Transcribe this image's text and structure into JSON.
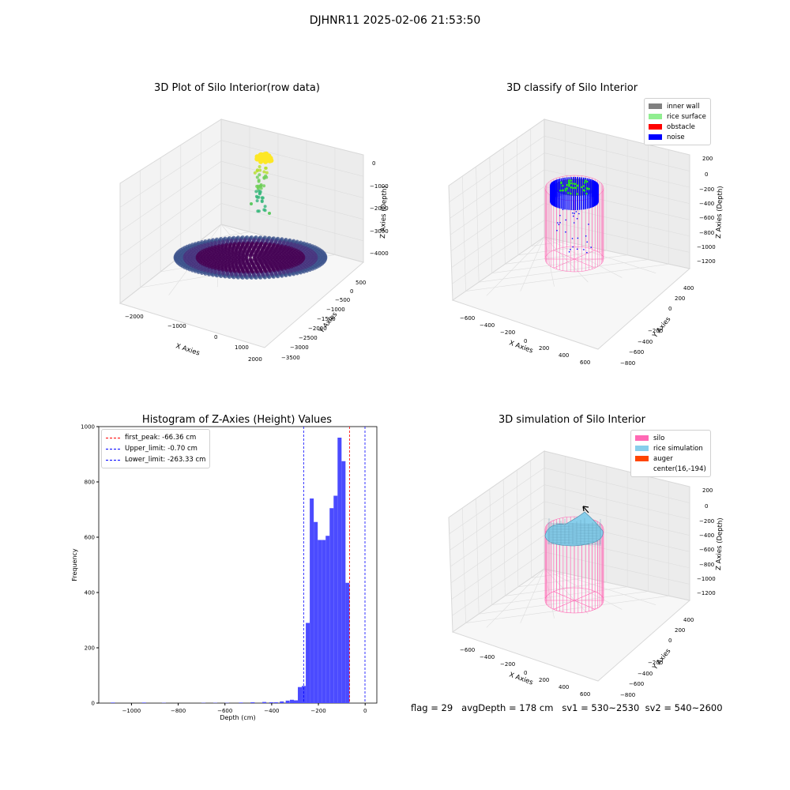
{
  "suptitle": "DJHNR11 2025-02-06 21:53:50",
  "footer": {
    "flag": "flag = 29",
    "avg": "avgDepth = 178 cm",
    "sv1": "sv1 = 530~2530",
    "sv2": "sv2 = 540~2600"
  },
  "chart_data": [
    {
      "type": "scatter",
      "title": "3D Plot of Silo Interior(row data)",
      "xlabel": "X Axies",
      "ylabel": "Y Axies",
      "zlabel": "Z Axies (Depth)",
      "x_ticks": [
        "−2000",
        "−1000",
        "0",
        "1000",
        "2000"
      ],
      "y_ticks": [
        "500",
        "0",
        "−500",
        "−1000",
        "−1500",
        "−2000",
        "−2500",
        "−3000",
        "−3500"
      ],
      "z_ticks": [
        "0",
        "−1000",
        "−2000",
        "−3000",
        "−4000"
      ],
      "colormap": "viridis"
    },
    {
      "type": "scatter",
      "title": "3D classify of Silo Interior",
      "xlabel": "X Axies",
      "ylabel": "Y Axies",
      "zlabel": "Z Axies (Depth)",
      "x_ticks": [
        "−600",
        "−400",
        "−200",
        "0",
        "200",
        "400",
        "600"
      ],
      "y_ticks": [
        "400",
        "200",
        "0",
        "−200",
        "−400",
        "−600",
        "−800"
      ],
      "z_ticks": [
        "200",
        "0",
        "−200",
        "−400",
        "−600",
        "−800",
        "−1000",
        "−1200"
      ],
      "legend": [
        {
          "label": "inner wall",
          "color": "#808080"
        },
        {
          "label": "rice surface",
          "color": "#90ee90"
        },
        {
          "label": "obstacle",
          "color": "#ff0000"
        },
        {
          "label": "noise",
          "color": "#0000ff"
        }
      ],
      "legend_position": "top-right"
    },
    {
      "type": "bar",
      "title": "Histogram of Z-Axies (Height) Values",
      "xlabel": "Depth (cm)",
      "ylabel": "Frequency",
      "xlim": [
        -1140,
        50
      ],
      "ylim": [
        0,
        1000
      ],
      "x_ticks": [
        -1000,
        -800,
        -600,
        -400,
        -200,
        0
      ],
      "x_tick_labels": [
        "−1000",
        "−800",
        "−600",
        "−400",
        "−200",
        "0"
      ],
      "y_ticks": [
        0,
        200,
        400,
        600,
        800,
        1000
      ],
      "bin_width": 17,
      "bins": [
        {
          "x": -1088,
          "v": 2
        },
        {
          "x": -955,
          "v": 2
        },
        {
          "x": -870,
          "v": 1
        },
        {
          "x": -700,
          "v": 1
        },
        {
          "x": -650,
          "v": 1
        },
        {
          "x": -600,
          "v": 1
        },
        {
          "x": -540,
          "v": 2
        },
        {
          "x": -490,
          "v": 3
        },
        {
          "x": -440,
          "v": 4
        },
        {
          "x": -410,
          "v": 3
        },
        {
          "x": -390,
          "v": 3
        },
        {
          "x": -365,
          "v": 6
        },
        {
          "x": -340,
          "v": 9
        },
        {
          "x": -322,
          "v": 12
        },
        {
          "x": -305,
          "v": 10
        },
        {
          "x": -288,
          "v": 58
        },
        {
          "x": -271,
          "v": 62
        },
        {
          "x": -254,
          "v": 290
        },
        {
          "x": -237,
          "v": 740
        },
        {
          "x": -220,
          "v": 655
        },
        {
          "x": -203,
          "v": 590
        },
        {
          "x": -186,
          "v": 590
        },
        {
          "x": -169,
          "v": 605
        },
        {
          "x": -152,
          "v": 705
        },
        {
          "x": -135,
          "v": 750
        },
        {
          "x": -118,
          "v": 960
        },
        {
          "x": -101,
          "v": 875
        },
        {
          "x": -84,
          "v": 435
        }
      ],
      "bar_color": "#4b4bff",
      "lines": [
        {
          "label": "first_peak: -66.36 cm",
          "x": -66.36,
          "color": "#ff0000"
        },
        {
          "label": "Upper_limit: -0.70 cm",
          "x": -0.7,
          "color": "#0000ff"
        },
        {
          "label": "Lower_limit: -263.33 cm",
          "x": -263.33,
          "color": "#0000ff"
        }
      ],
      "legend_position": "top-left"
    },
    {
      "type": "area",
      "title": "3D simulation of Silo Interior",
      "xlabel": "X Axies",
      "ylabel": "Y Axies",
      "zlabel": "Z Axies (Depth)",
      "x_ticks": [
        "−600",
        "−400",
        "−200",
        "0",
        "200",
        "400",
        "600"
      ],
      "y_ticks": [
        "400",
        "200",
        "0",
        "−200",
        "−400",
        "−600",
        "−800"
      ],
      "z_ticks": [
        "200",
        "0",
        "−200",
        "−400",
        "−600",
        "−800",
        "−1000",
        "−1200"
      ],
      "legend": [
        {
          "label": "silo",
          "color": "#ff69b4"
        },
        {
          "label": "rice simulation",
          "color": "#87ceeb"
        },
        {
          "label": "auger",
          "color": "#ff4500"
        },
        {
          "label": "center(16,-194)",
          "color": ""
        }
      ],
      "legend_position": "top-right"
    }
  ]
}
